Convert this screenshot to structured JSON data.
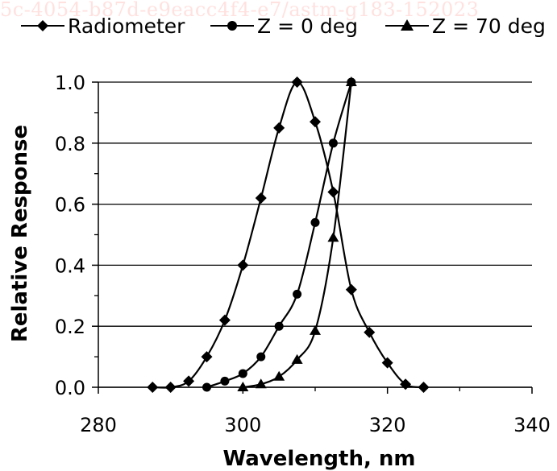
{
  "watermark_text": "5c-4054-b87d-e9eacc4f4-e7/astm-g183-152023",
  "chart_data": {
    "type": "line",
    "xlabel": "Wavelength, nm",
    "ylabel": "Relative Response",
    "xlim": [
      280,
      340
    ],
    "ylim": [
      0,
      1.0
    ],
    "x_ticks": [
      "280",
      "300",
      "320",
      "340"
    ],
    "y_ticks": [
      "0.0",
      "0.2",
      "0.4",
      "0.6",
      "0.8",
      "1.0"
    ],
    "grid": "horizontal",
    "legend_position": "top",
    "series": [
      {
        "name": "Radiometer",
        "marker": "diamond",
        "color": "#000000",
        "x": [
          287.5,
          290,
          292.5,
          295,
          297.5,
          300,
          302.5,
          305,
          307.5,
          310,
          312.5,
          315,
          317.5,
          320,
          322.5,
          325
        ],
        "y": [
          0.0,
          0.0,
          0.02,
          0.1,
          0.22,
          0.4,
          0.62,
          0.85,
          1.0,
          0.87,
          0.64,
          0.32,
          0.18,
          0.08,
          0.01,
          0.0
        ]
      },
      {
        "name": "Z = 0 deg",
        "marker": "circle",
        "color": "#000000",
        "x": [
          295,
          297.5,
          300,
          302.5,
          305,
          307.5,
          310,
          312.5,
          315
        ],
        "y": [
          0.0,
          0.02,
          0.045,
          0.1,
          0.2,
          0.305,
          0.54,
          0.8,
          1.0
        ]
      },
      {
        "name": "Z = 70 deg",
        "marker": "triangle",
        "color": "#000000",
        "x": [
          300,
          302.5,
          305,
          307.5,
          310,
          312.5,
          315
        ],
        "y": [
          0.0,
          0.01,
          0.035,
          0.09,
          0.185,
          0.49,
          1.0
        ]
      }
    ]
  }
}
